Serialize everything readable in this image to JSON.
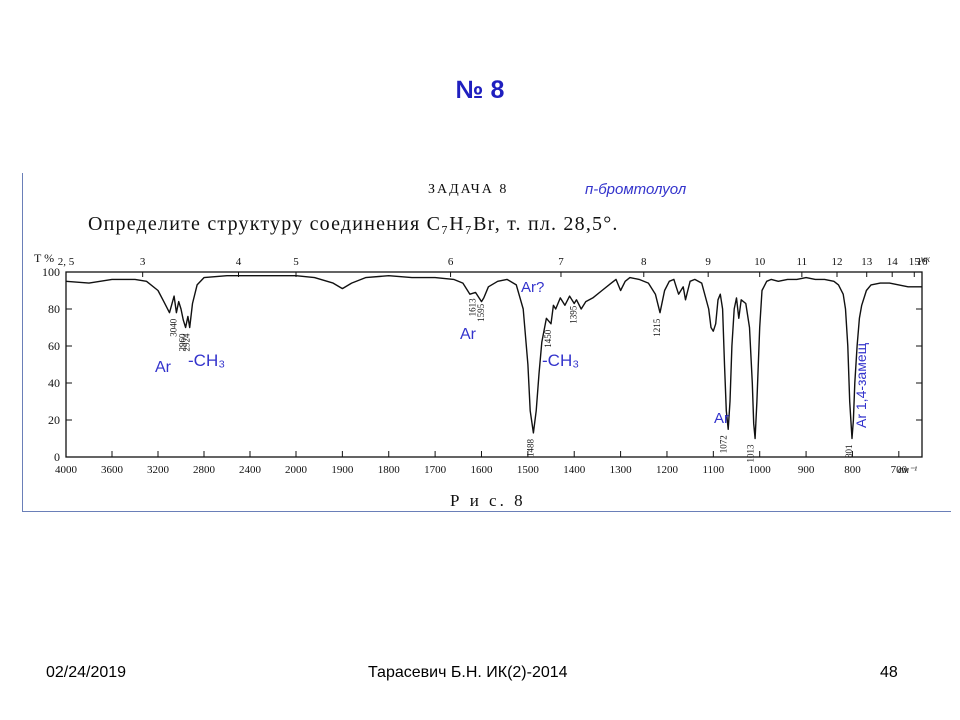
{
  "slide": {
    "title": "№ 8",
    "footer_date": "02/24/2019",
    "footer_center": "Тарасевич Б.Н. ИК(2)-2014",
    "footer_page": "48"
  },
  "figure": {
    "task_label": "ЗАДАЧА 8",
    "compound_name": "п-бромтолуол",
    "prompt": "Определите структуру соединения C₇H₇Br, т. пл. 28,5°.",
    "caption": "Р и с. 8"
  },
  "colors": {
    "title": "#1f1fbf",
    "annotation": "#3333cc",
    "spectrum": "#111111"
  },
  "chart_data": {
    "type": "line",
    "title": "",
    "xlabel": "см⁻¹",
    "ylabel": "T %",
    "y_ticks": [
      "0",
      "20",
      "40",
      "60",
      "80",
      "100"
    ],
    "ylim": [
      0,
      100
    ],
    "x_ticks_wavenumber": [
      "4000",
      "3600",
      "3200",
      "2800",
      "2400",
      "2000",
      "1900",
      "1800",
      "1700",
      "1600",
      "1500",
      "1400",
      "1300",
      "1200",
      "1100",
      "1000",
      "900",
      "800",
      "700"
    ],
    "x_unit_bottom": "см⁻¹",
    "x_ticks_micron": [
      "2, 5",
      "3",
      "4",
      "5",
      "6",
      "7",
      "8",
      "9",
      "10",
      "11",
      "12",
      "13",
      "14",
      "15",
      "16"
    ],
    "x_unit_top": "мк",
    "grid": false,
    "series": [
      {
        "x": [
          4000,
          3800,
          3600,
          3400,
          3300,
          3200,
          3150,
          3100,
          3060,
          3040,
          3020,
          3000,
          2980,
          2960,
          2940,
          2924,
          2900,
          2860,
          2800,
          2600,
          2400,
          2200,
          2000,
          1960,
          1920,
          1900,
          1880,
          1850,
          1800,
          1750,
          1700,
          1660,
          1640,
          1625,
          1613,
          1600,
          1595,
          1585,
          1565,
          1545,
          1525,
          1510,
          1500,
          1495,
          1488,
          1482,
          1476,
          1470,
          1460,
          1450,
          1445,
          1440,
          1430,
          1420,
          1410,
          1400,
          1395,
          1385,
          1375,
          1360,
          1340,
          1320,
          1310,
          1300,
          1290,
          1280,
          1260,
          1240,
          1225,
          1215,
          1205,
          1195,
          1185,
          1180,
          1175,
          1165,
          1160,
          1155,
          1150,
          1140,
          1125,
          1110,
          1105,
          1100,
          1095,
          1090,
          1085,
          1080,
          1076,
          1072,
          1068,
          1064,
          1060,
          1055,
          1050,
          1045,
          1040,
          1030,
          1022,
          1016,
          1013,
          1010,
          1006,
          1000,
          995,
          985,
          975,
          960,
          940,
          920,
          900,
          880,
          860,
          840,
          830,
          820,
          815,
          810,
          806,
          801,
          798,
          795,
          790,
          785,
          780,
          770,
          760,
          740,
          720,
          700,
          680,
          660,
          650
        ],
        "y": [
          95,
          94,
          96,
          96,
          95,
          90,
          84,
          78,
          87,
          78,
          84,
          80,
          74,
          70,
          76,
          70,
          83,
          93,
          97,
          98,
          98,
          98,
          98,
          97,
          94,
          91,
          94,
          97,
          98,
          97,
          97,
          96,
          94,
          88,
          89,
          84,
          86,
          92,
          95,
          96,
          93,
          80,
          50,
          25,
          13,
          25,
          45,
          62,
          75,
          72,
          82,
          80,
          86,
          82,
          87,
          83,
          85,
          80,
          84,
          86,
          90,
          94,
          96,
          90,
          95,
          97,
          96,
          94,
          88,
          78,
          90,
          95,
          96,
          92,
          88,
          92,
          85,
          90,
          95,
          96,
          94,
          80,
          70,
          68,
          72,
          85,
          88,
          80,
          50,
          25,
          15,
          30,
          60,
          80,
          86,
          75,
          85,
          83,
          70,
          40,
          18,
          10,
          30,
          70,
          90,
          95,
          96,
          95,
          96,
          96,
          97,
          96,
          96,
          95,
          93,
          88,
          80,
          60,
          30,
          10,
          20,
          40,
          60,
          75,
          82,
          90,
          93,
          94,
          94,
          93,
          92,
          92,
          92
        ],
        "annotations": [
          {
            "text": "3040",
            "x": 3040,
            "y": 78
          },
          {
            "text": "2960",
            "x": 2960,
            "y": 70
          },
          {
            "text": "2924",
            "x": 2924,
            "y": 70
          },
          {
            "text": "1613",
            "x": 1613,
            "y": 89
          },
          {
            "text": "1595",
            "x": 1595,
            "y": 86
          },
          {
            "text": "1488",
            "x": 1488,
            "y": 13
          },
          {
            "text": "1450",
            "x": 1450,
            "y": 72
          },
          {
            "text": "1395",
            "x": 1395,
            "y": 85
          },
          {
            "text": "1215",
            "x": 1215,
            "y": 78
          },
          {
            "text": "1072",
            "x": 1072,
            "y": 15
          },
          {
            "text": "1013",
            "x": 1013,
            "y": 10
          },
          {
            "text": "801",
            "x": 801,
            "y": 10
          }
        ]
      }
    ],
    "band_labels": [
      {
        "text": "Ar",
        "near_x": 3150
      },
      {
        "text": "-CH₃",
        "near_x": 2900
      },
      {
        "text": "Ar",
        "near_x": 1605
      },
      {
        "text": "Ar?",
        "near_x": 1470
      },
      {
        "text": "-CH₃",
        "near_x": 1440
      },
      {
        "text": "Ar",
        "near_x": 1060
      },
      {
        "text": "Ar 1,4-замещ",
        "near_x": 760
      }
    ]
  }
}
